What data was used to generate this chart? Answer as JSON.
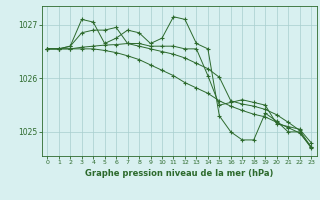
{
  "xlabel": "Graphe pression niveau de la mer (hPa)",
  "hours": [
    0,
    1,
    2,
    3,
    4,
    5,
    6,
    7,
    8,
    9,
    10,
    11,
    12,
    13,
    14,
    15,
    16,
    17,
    18,
    19,
    20,
    21,
    22,
    23
  ],
  "line1": [
    1026.55,
    1026.55,
    1026.6,
    1026.85,
    1026.9,
    1026.9,
    1026.95,
    1026.65,
    1026.65,
    1026.6,
    1026.6,
    1026.6,
    1026.55,
    1026.55,
    1026.05,
    1025.5,
    1025.55,
    1025.6,
    1025.55,
    1025.5,
    1025.15,
    1025.1,
    1025.05,
    1024.8
  ],
  "line2": [
    1026.55,
    1026.55,
    1026.6,
    1027.1,
    1027.05,
    1026.65,
    1026.75,
    1026.9,
    1026.85,
    1026.65,
    1026.75,
    1027.15,
    1027.1,
    1026.65,
    1026.55,
    1025.3,
    1025.0,
    1024.85,
    1024.85,
    1025.35,
    1025.2,
    1025.0,
    1025.0,
    1024.7
  ],
  "line3": [
    1026.55,
    1026.55,
    1026.55,
    1026.55,
    1026.55,
    1026.52,
    1026.48,
    1026.42,
    1026.35,
    1026.25,
    1026.15,
    1026.05,
    1025.92,
    1025.82,
    1025.72,
    1025.58,
    1025.48,
    1025.4,
    1025.33,
    1025.28,
    1025.18,
    1025.08,
    1024.98,
    1024.72
  ],
  "line4": [
    1026.55,
    1026.55,
    1026.55,
    1026.58,
    1026.6,
    1026.62,
    1026.63,
    1026.65,
    1026.6,
    1026.55,
    1026.5,
    1026.45,
    1026.38,
    1026.28,
    1026.18,
    1026.02,
    1025.58,
    1025.52,
    1025.48,
    1025.42,
    1025.32,
    1025.18,
    1025.03,
    1024.72
  ],
  "line_color": "#2d6a2d",
  "bg_color": "#d8f0f0",
  "grid_color": "#a8cece",
  "ylim": [
    1024.55,
    1027.35
  ],
  "yticks": [
    1025.0,
    1026.0,
    1027.0
  ],
  "xlim": [
    -0.5,
    23.5
  ]
}
